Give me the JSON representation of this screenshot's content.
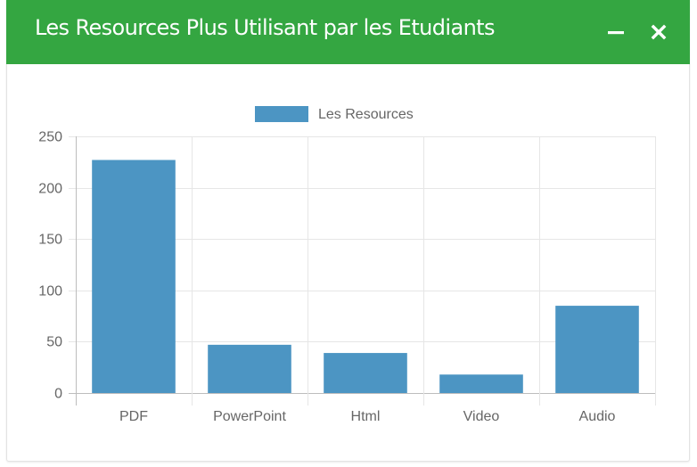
{
  "widget": {
    "title": "Les Resources Plus Utilisant par les Etudiants",
    "minimize_icon": "minus-icon",
    "close_icon": "close-icon",
    "header_color": "#34a641"
  },
  "chart_data": {
    "type": "bar",
    "categories": [
      "PDF",
      "PowerPoint",
      "Html",
      "Video",
      "Audio"
    ],
    "series": [
      {
        "name": "Les Resources",
        "values": [
          227,
          47,
          39,
          18,
          85
        ]
      }
    ],
    "ylim": [
      0,
      250
    ],
    "yticks": [
      0,
      50,
      100,
      150,
      200,
      250
    ],
    "grid": true,
    "legend": "top-center",
    "bar_color": "#4c95c3"
  }
}
